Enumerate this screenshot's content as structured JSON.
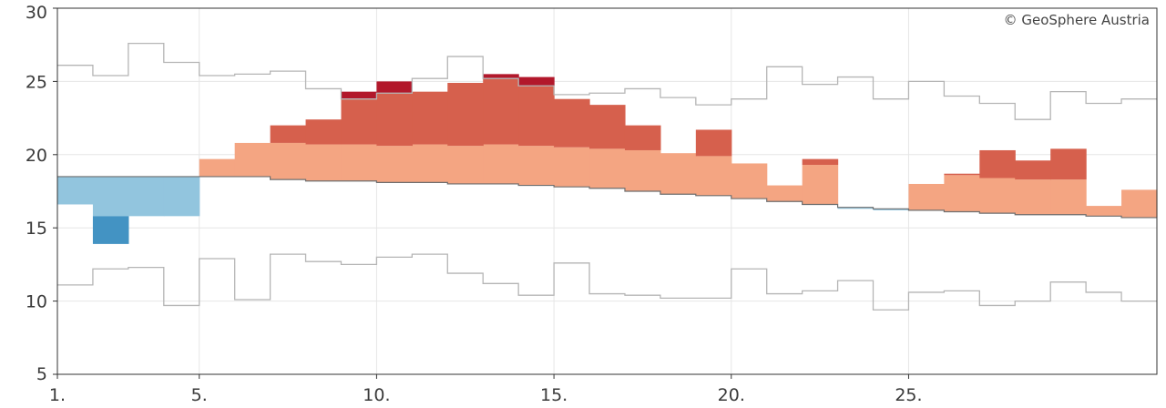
{
  "chart_data": {
    "type": "step-band",
    "title": "",
    "credit": "© GeoSphere Austria",
    "xlabel": "",
    "ylabel": "",
    "ylim": [
      5,
      30
    ],
    "x_days": [
      1,
      2,
      3,
      4,
      5,
      6,
      7,
      8,
      9,
      10,
      11,
      12,
      13,
      14,
      15,
      16,
      17,
      18,
      19,
      20,
      21,
      22,
      23,
      24,
      25,
      26,
      27,
      28,
      29,
      30,
      31
    ],
    "x_tick_labels": [
      {
        "day": 1,
        "label": "1."
      },
      {
        "day": 5,
        "label": "5."
      },
      {
        "day": 10,
        "label": "10."
      },
      {
        "day": 15,
        "label": "15."
      },
      {
        "day": 20,
        "label": "20."
      },
      {
        "day": 25,
        "label": "25."
      }
    ],
    "y_ticks": [
      5,
      10,
      15,
      20,
      25,
      30
    ],
    "grid": true,
    "series": [
      {
        "name": "daily_max_record",
        "values": [
          26.1,
          25.4,
          27.6,
          26.3,
          25.4,
          25.5,
          25.7,
          24.5,
          23.8,
          24.2,
          25.2,
          26.7,
          25.2,
          24.7,
          24.1,
          24.2,
          24.5,
          23.9,
          23.4,
          23.8,
          26.0,
          24.8,
          25.3,
          23.8,
          25.0,
          24.0,
          23.5,
          22.4,
          24.3,
          23.5,
          23.8
        ]
      },
      {
        "name": "daily_min_record",
        "values": [
          11.1,
          12.2,
          12.3,
          9.7,
          12.9,
          10.1,
          13.2,
          12.7,
          12.5,
          13.0,
          13.2,
          11.9,
          11.2,
          10.4,
          12.6,
          10.5,
          10.4,
          10.2,
          10.2,
          12.2,
          10.5,
          10.7,
          11.4,
          9.4,
          10.6,
          10.7,
          9.7,
          10.0,
          11.3,
          10.6,
          10.0
        ]
      },
      {
        "name": "climatological_mean",
        "values": [
          18.5,
          18.5,
          18.5,
          18.5,
          18.5,
          18.5,
          18.3,
          18.2,
          18.2,
          18.1,
          18.1,
          18.0,
          18.0,
          17.9,
          17.8,
          17.7,
          17.5,
          17.3,
          17.2,
          17.0,
          16.8,
          16.6,
          16.4,
          16.3,
          16.2,
          16.1,
          16.0,
          15.9,
          15.9,
          15.8,
          15.7
        ]
      },
      {
        "name": "observed_daily_mean",
        "values": [
          16.6,
          15.8,
          15.8,
          15.8,
          19.7,
          20.8,
          20.8,
          20.7,
          20.7,
          20.6,
          20.7,
          20.6,
          20.7,
          20.6,
          20.5,
          20.4,
          20.3,
          20.1,
          19.9,
          19.4,
          17.9,
          19.3,
          16.3,
          16.2,
          18.0,
          18.6,
          18.4,
          18.3,
          18.3,
          16.5,
          17.6
        ]
      },
      {
        "name": "observed_daily_max",
        "values": [
          16.6,
          13.9,
          15.8,
          15.8,
          19.7,
          20.8,
          22.0,
          22.4,
          24.3,
          25.0,
          24.3,
          24.9,
          25.5,
          25.3,
          23.8,
          23.4,
          22.0,
          20.1,
          21.7,
          19.4,
          17.9,
          19.7,
          16.3,
          16.2,
          18.0,
          18.7,
          20.3,
          19.6,
          20.4,
          16.5,
          17.6
        ]
      }
    ],
    "colors": {
      "warm_light": "#f4a582",
      "warm_mid": "#d6604d",
      "warm_dark": "#b2182b",
      "cold_light": "#92c5de",
      "cold_dark": "#4393c3",
      "record_line": "#b5b5b5",
      "mean_line": "#6e6e6e",
      "grid": "#e6e6e6",
      "axis": "#333333"
    }
  }
}
